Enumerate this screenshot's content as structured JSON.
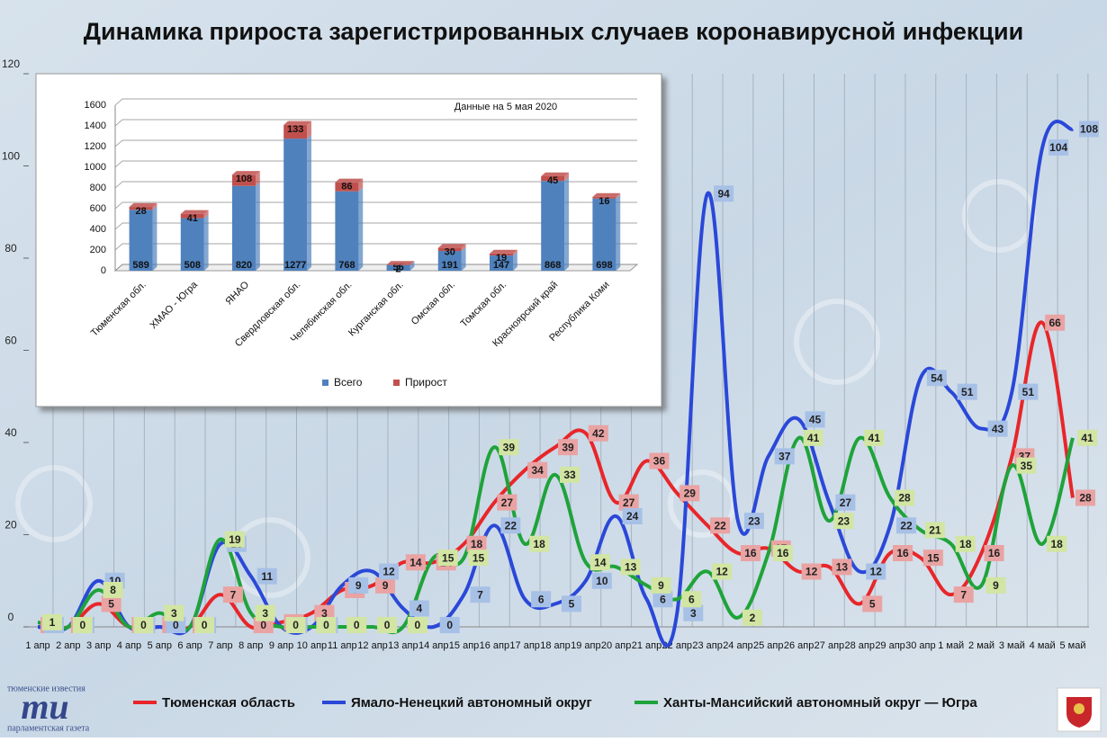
{
  "title": "Динамика прироста зарегистрированных случаев коронавирусной инфекции",
  "chart_data": [
    {
      "type": "line",
      "categories": [
        "1 апр",
        "2 апр",
        "3 апр",
        "4 апр",
        "5 апр",
        "6 апр",
        "7 апр",
        "8 апр",
        "9 апр",
        "10 апр",
        "11 апр",
        "12 апр",
        "13 апр",
        "14 апр",
        "15 апр",
        "16 апр",
        "17 апр",
        "18 апр",
        "19 апр",
        "20 апр",
        "21 апр",
        "22 апр",
        "23 апр",
        "24 апр",
        "25 апр",
        "26 апр",
        "27 апр",
        "28 апр",
        "29 апр",
        "30 апр",
        "1 май",
        "2 май",
        "3 май",
        "4 май",
        "5 май"
      ],
      "series": [
        {
          "name": "Тюменская область",
          "color": "#e8262a",
          "label_color": "#e9a3a3",
          "values": [
            0,
            0,
            5,
            0,
            0,
            0,
            7,
            0,
            1,
            3,
            8,
            9,
            14,
            14,
            18,
            27,
            34,
            39,
            42,
            27,
            36,
            29,
            22,
            16,
            17,
            12,
            13,
            5,
            16,
            15,
            7,
            16,
            37,
            66,
            28
          ]
        },
        {
          "name": "Ямало-Ненецкий автономный округ",
          "color": "#2a48d8",
          "label_color": "#a7c0e6",
          "values": [
            0,
            0,
            10,
            0,
            0,
            0,
            18,
            11,
            0,
            0,
            9,
            12,
            4,
            0,
            7,
            22,
            6,
            5,
            10,
            24,
            6,
            3,
            94,
            23,
            37,
            45,
            27,
            12,
            22,
            54,
            51,
            43,
            51,
            104,
            108
          ]
        },
        {
          "name": "Ханты-Мансийский автономный округ — Югра",
          "color": "#1fa33a",
          "label_color": "#d2e5a2",
          "values": [
            1,
            0,
            8,
            0,
            3,
            0,
            19,
            3,
            0,
            0,
            0,
            0,
            0,
            15,
            15,
            39,
            18,
            33,
            14,
            13,
            9,
            6,
            12,
            2,
            16,
            41,
            23,
            41,
            28,
            21,
            18,
            9,
            35,
            18,
            41
          ]
        }
      ],
      "ylim": [
        0,
        120
      ],
      "yticks": [
        0,
        20,
        40,
        60,
        80,
        100,
        120
      ],
      "grid": true,
      "legend": "bottom"
    },
    {
      "type": "bar3d",
      "title": "Данные на 5 мая 2020",
      "categories": [
        "Тюменская обл.",
        "ХМАО - Югра",
        "ЯНАО",
        "Свердловская обл.",
        "Челябинская обл.",
        "Курганская обл.",
        "Омская обл.",
        "Томская обл.",
        "Красноярский край",
        "Республика Коми"
      ],
      "series": [
        {
          "name": "Всего",
          "color": "#4f81bd",
          "values": [
            589,
            508,
            820,
            1277,
            768,
            55,
            191,
            147,
            868,
            698
          ]
        },
        {
          "name": "Прирост",
          "color": "#c0504d",
          "values": [
            28,
            41,
            108,
            133,
            86,
            2,
            30,
            19,
            45,
            16
          ]
        }
      ],
      "stacked": true,
      "ylim": [
        0,
        1600
      ],
      "yticks": [
        0,
        200,
        400,
        600,
        800,
        1000,
        1200,
        1400,
        1600
      ],
      "grid": true,
      "legend": "bottom"
    }
  ],
  "logo": {
    "top": "тюменские известия",
    "mark": "ти",
    "bottom": "парламентская газета"
  }
}
